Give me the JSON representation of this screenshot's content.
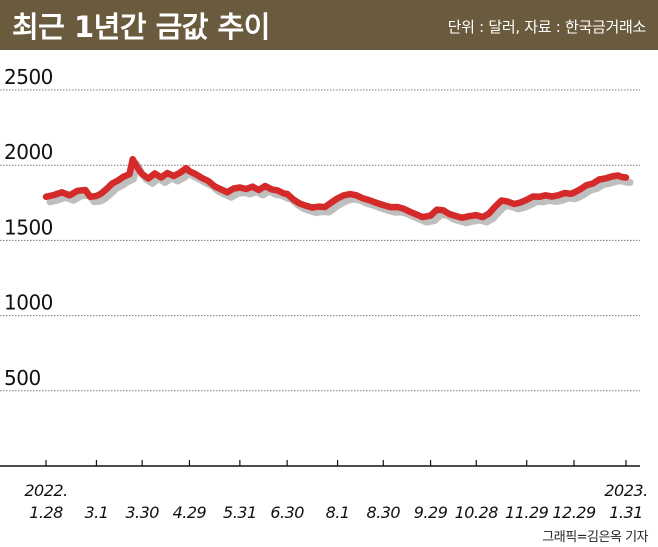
{
  "header": {
    "title": "최근 1년간 금값 추이",
    "unit_source": "단위 : 달러, 자료 : 한국금거래소"
  },
  "credit": "그래픽=김은옥 기자",
  "colors": {
    "header_bg": "#6b5b3e",
    "line": "#d42a2a",
    "grid": "#7a7a7a",
    "axis": "#111111"
  },
  "chart_data": {
    "type": "line",
    "title": "최근 1년간 금값 추이",
    "xlabel": "",
    "ylabel": "",
    "ylim": [
      0,
      2500
    ],
    "yticks": [
      500,
      1000,
      1500,
      2000,
      2500
    ],
    "ytick_labels": [
      "500",
      "1000",
      "1500",
      "2000",
      "2500"
    ],
    "grid": true,
    "x_labels": [
      {
        "date": "2022-01-28",
        "top": "2022.",
        "bottom": "1.28"
      },
      {
        "date": "2022-03-01",
        "top": "",
        "bottom": "3.1"
      },
      {
        "date": "2022-03-30",
        "top": "",
        "bottom": "3.30"
      },
      {
        "date": "2022-04-29",
        "top": "",
        "bottom": "4.29"
      },
      {
        "date": "2022-05-31",
        "top": "",
        "bottom": "5.31"
      },
      {
        "date": "2022-06-30",
        "top": "",
        "bottom": "6.30"
      },
      {
        "date": "2022-08-01",
        "top": "",
        "bottom": "8.1"
      },
      {
        "date": "2022-08-30",
        "top": "",
        "bottom": "8.30"
      },
      {
        "date": "2022-09-29",
        "top": "",
        "bottom": "9.29"
      },
      {
        "date": "2022-10-28",
        "top": "",
        "bottom": "10.28"
      },
      {
        "date": "2022-11-29",
        "top": "",
        "bottom": "11.29"
      },
      {
        "date": "2022-12-29",
        "top": "",
        "bottom": "12.29"
      },
      {
        "date": "2023-01-31",
        "top": "2023.",
        "bottom": "1.31"
      }
    ],
    "series": [
      {
        "points": [
          [
            "2022-01-28",
            1790
          ],
          [
            "2022-02-02",
            1802
          ],
          [
            "2022-02-07",
            1820
          ],
          [
            "2022-02-12",
            1800
          ],
          [
            "2022-02-17",
            1830
          ],
          [
            "2022-02-22",
            1835
          ],
          [
            "2022-02-25",
            1790
          ],
          [
            "2022-03-01",
            1795
          ],
          [
            "2022-03-04",
            1812
          ],
          [
            "2022-03-08",
            1848
          ],
          [
            "2022-03-11",
            1878
          ],
          [
            "2022-03-15",
            1900
          ],
          [
            "2022-03-18",
            1922
          ],
          [
            "2022-03-22",
            1940
          ],
          [
            "2022-03-24",
            2040
          ],
          [
            "2022-03-27",
            1985
          ],
          [
            "2022-03-30",
            1940
          ],
          [
            "2022-04-03",
            1912
          ],
          [
            "2022-04-07",
            1945
          ],
          [
            "2022-04-11",
            1918
          ],
          [
            "2022-04-15",
            1948
          ],
          [
            "2022-04-19",
            1928
          ],
          [
            "2022-04-23",
            1950
          ],
          [
            "2022-04-27",
            1980
          ],
          [
            "2022-04-29",
            1960
          ],
          [
            "2022-05-03",
            1940
          ],
          [
            "2022-05-07",
            1915
          ],
          [
            "2022-05-11",
            1895
          ],
          [
            "2022-05-15",
            1860
          ],
          [
            "2022-05-19",
            1840
          ],
          [
            "2022-05-23",
            1820
          ],
          [
            "2022-05-27",
            1845
          ],
          [
            "2022-05-31",
            1852
          ],
          [
            "2022-06-04",
            1842
          ],
          [
            "2022-06-08",
            1858
          ],
          [
            "2022-06-12",
            1835
          ],
          [
            "2022-06-16",
            1862
          ],
          [
            "2022-06-20",
            1840
          ],
          [
            "2022-06-24",
            1832
          ],
          [
            "2022-06-28",
            1812
          ],
          [
            "2022-06-30",
            1810
          ],
          [
            "2022-07-04",
            1772
          ],
          [
            "2022-07-08",
            1745
          ],
          [
            "2022-07-12",
            1730
          ],
          [
            "2022-07-16",
            1718
          ],
          [
            "2022-07-20",
            1725
          ],
          [
            "2022-07-24",
            1722
          ],
          [
            "2022-07-28",
            1752
          ],
          [
            "2022-08-01",
            1780
          ],
          [
            "2022-08-05",
            1800
          ],
          [
            "2022-08-09",
            1808
          ],
          [
            "2022-08-13",
            1800
          ],
          [
            "2022-08-17",
            1780
          ],
          [
            "2022-08-21",
            1768
          ],
          [
            "2022-08-25",
            1752
          ],
          [
            "2022-08-30",
            1735
          ],
          [
            "2022-09-04",
            1720
          ],
          [
            "2022-09-08",
            1722
          ],
          [
            "2022-09-12",
            1710
          ],
          [
            "2022-09-16",
            1690
          ],
          [
            "2022-09-20",
            1672
          ],
          [
            "2022-09-24",
            1655
          ],
          [
            "2022-09-29",
            1665
          ],
          [
            "2022-10-03",
            1705
          ],
          [
            "2022-10-07",
            1700
          ],
          [
            "2022-10-11",
            1675
          ],
          [
            "2022-10-15",
            1662
          ],
          [
            "2022-10-19",
            1650
          ],
          [
            "2022-10-23",
            1660
          ],
          [
            "2022-10-28",
            1668
          ],
          [
            "2022-11-01",
            1655
          ],
          [
            "2022-11-05",
            1678
          ],
          [
            "2022-11-09",
            1725
          ],
          [
            "2022-11-13",
            1765
          ],
          [
            "2022-11-17",
            1758
          ],
          [
            "2022-11-21",
            1742
          ],
          [
            "2022-11-25",
            1752
          ],
          [
            "2022-11-29",
            1770
          ],
          [
            "2022-12-03",
            1792
          ],
          [
            "2022-12-07",
            1790
          ],
          [
            "2022-12-11",
            1800
          ],
          [
            "2022-12-15",
            1792
          ],
          [
            "2022-12-19",
            1800
          ],
          [
            "2022-12-23",
            1815
          ],
          [
            "2022-12-27",
            1810
          ],
          [
            "2022-12-29",
            1818
          ],
          [
            "2023-01-02",
            1840
          ],
          [
            "2023-01-06",
            1868
          ],
          [
            "2023-01-10",
            1878
          ],
          [
            "2023-01-14",
            1905
          ],
          [
            "2023-01-18",
            1912
          ],
          [
            "2023-01-22",
            1925
          ],
          [
            "2023-01-26",
            1932
          ],
          [
            "2023-01-28",
            1922
          ],
          [
            "2023-01-31",
            1918
          ]
        ]
      }
    ]
  }
}
